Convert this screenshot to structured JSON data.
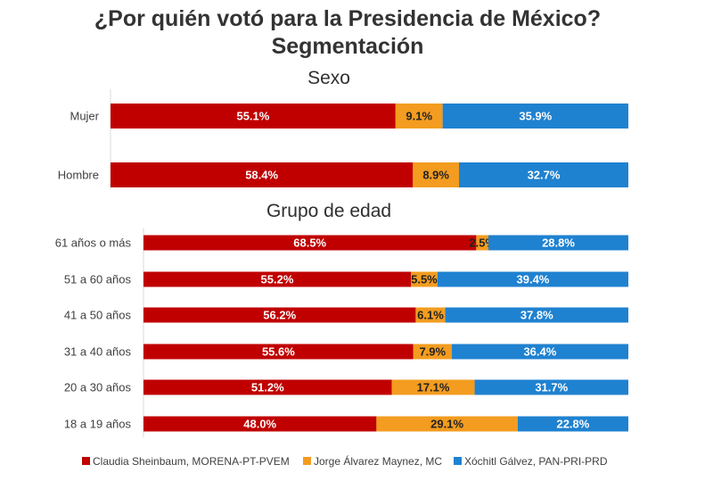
{
  "chart_data": {
    "type": "bar",
    "stacked": true,
    "orientation": "horizontal",
    "unit": "%",
    "title_line1": "¿Por quién votó para la Presidencia de México?",
    "title_line2": "Segmentación",
    "legend_position": "bottom",
    "series_colors": [
      "#c00000",
      "#f39c1f",
      "#1f82d0"
    ],
    "legend": [
      "Claudia Sheinbaum, MORENA-PT-PVEM",
      "Jorge Álvarez Maynez, MC",
      "Xóchitl Gálvez, PAN-PRI-PRD"
    ],
    "panels": [
      {
        "title": "Sexo",
        "categories": [
          "Mujer",
          "Hombre"
        ],
        "series": [
          {
            "name": "Claudia Sheinbaum, MORENA-PT-PVEM",
            "values": [
              55.1,
              58.4
            ],
            "labels": [
              "55.1%",
              "58.4%"
            ]
          },
          {
            "name": "Jorge Álvarez Maynez, MC",
            "values": [
              9.1,
              8.9
            ],
            "labels": [
              "9.1%",
              "8.9%"
            ]
          },
          {
            "name": "Xóchitl Gálvez, PAN-PRI-PRD",
            "values": [
              35.9,
              32.7
            ],
            "labels": [
              "35.9%",
              "32.7%"
            ]
          }
        ]
      },
      {
        "title": "Grupo de edad",
        "categories": [
          "61 años o más",
          "51 a 60 años",
          "41 a 50 años",
          "31 a 40 años",
          "20 a 30 años",
          "18 a 19 años"
        ],
        "series": [
          {
            "name": "Claudia Sheinbaum, MORENA-PT-PVEM",
            "values": [
              68.5,
              55.2,
              56.2,
              55.6,
              51.2,
              48.0
            ],
            "labels": [
              "68.5%",
              "55.2%",
              "56.2%",
              "55.6%",
              "51.2%",
              "48.0%"
            ]
          },
          {
            "name": "Jorge Álvarez Maynez, MC",
            "values": [
              2.5,
              5.5,
              6.1,
              7.9,
              17.1,
              29.1
            ],
            "labels": [
              "2.5%",
              "5.5%",
              "6.1%",
              "7.9%",
              "17.1%",
              "29.1%"
            ]
          },
          {
            "name": "Xóchitl Gálvez, PAN-PRI-PRD",
            "values": [
              28.8,
              39.4,
              37.8,
              36.4,
              31.7,
              22.8
            ],
            "labels": [
              "28.8%",
              "39.4%",
              "37.8%",
              "36.4%",
              "31.7%",
              "22.8%"
            ]
          }
        ]
      }
    ]
  }
}
